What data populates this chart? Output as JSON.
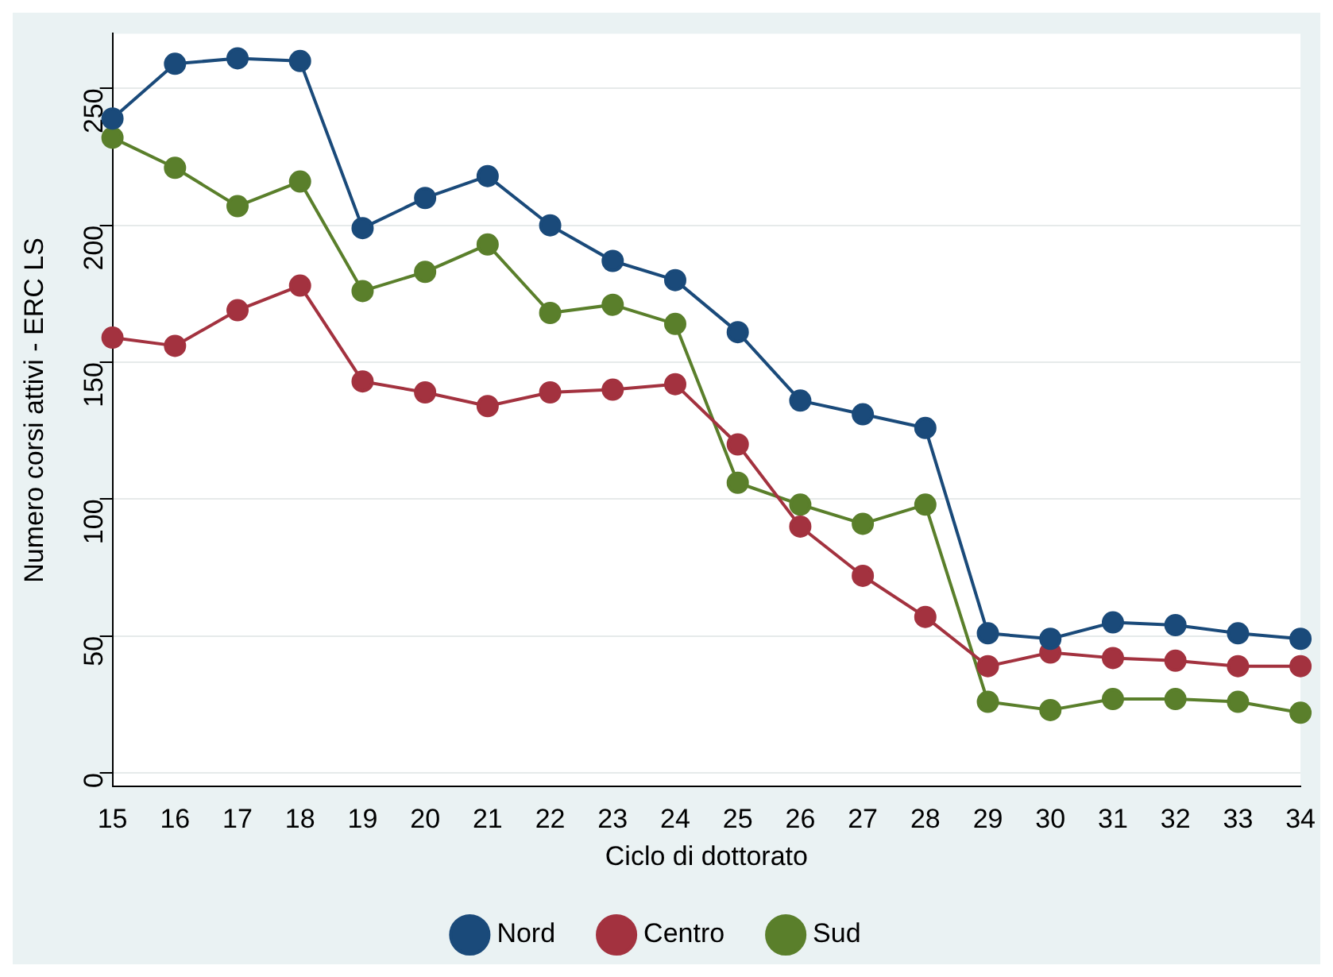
{
  "chart_data": {
    "type": "line",
    "xlabel": "Ciclo di dottorato",
    "ylabel": "Numero corsi attivi - ERC LS",
    "categories": [
      "15",
      "16",
      "17",
      "18",
      "19",
      "20",
      "21",
      "22",
      "23",
      "24",
      "25",
      "26",
      "27",
      "28",
      "29",
      "30",
      "31",
      "32",
      "33",
      "34"
    ],
    "series": [
      {
        "name": "Nord",
        "color": "#1a4a7a",
        "values": [
          239,
          259,
          261,
          260,
          199,
          210,
          218,
          200,
          187,
          180,
          161,
          136,
          131,
          126,
          51,
          49,
          55,
          54,
          51,
          49
        ]
      },
      {
        "name": "Centro",
        "color": "#a3323f",
        "values": [
          159,
          156,
          169,
          178,
          143,
          139,
          134,
          139,
          140,
          142,
          120,
          90,
          72,
          57,
          39,
          44,
          42,
          41,
          39,
          39
        ]
      },
      {
        "name": "Sud",
        "color": "#5a7f2b",
        "values": [
          232,
          221,
          207,
          216,
          176,
          183,
          193,
          168,
          171,
          164,
          106,
          98,
          91,
          98,
          26,
          23,
          27,
          27,
          26,
          22
        ]
      }
    ],
    "ylim": [
      -5,
      270
    ],
    "yticks": [
      0,
      50,
      100,
      150,
      200,
      250
    ],
    "grid": "y",
    "legend": "bottom",
    "marker": "circle",
    "line_style": "solid"
  }
}
